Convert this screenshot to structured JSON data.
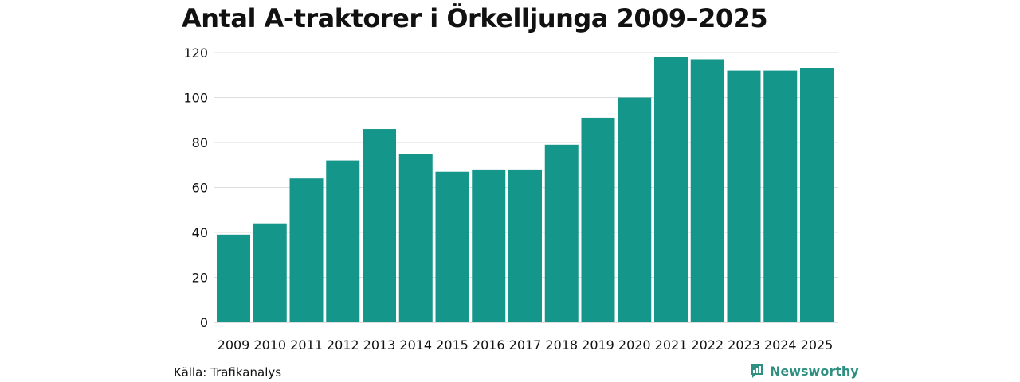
{
  "chart_data": {
    "type": "bar",
    "title": "Antal A-traktorer i Örkelljunga 2009–2025",
    "categories": [
      "2009",
      "2010",
      "2011",
      "2012",
      "2013",
      "2014",
      "2015",
      "2016",
      "2017",
      "2018",
      "2019",
      "2020",
      "2021",
      "2022",
      "2023",
      "2024",
      "2025"
    ],
    "values": [
      39,
      44,
      64,
      72,
      86,
      75,
      67,
      68,
      68,
      79,
      91,
      100,
      118,
      117,
      112,
      112,
      113
    ],
    "yticks": [
      0,
      20,
      40,
      60,
      80,
      100,
      120
    ],
    "ylim": [
      0,
      120
    ],
    "xlabel": "",
    "ylabel": "",
    "grid": true,
    "bar_color": "#15968a"
  },
  "footer": {
    "source": "Källa: Trafikanalys",
    "brand": "Newsworthy",
    "brand_icon": "newsworthy-logo-icon"
  }
}
